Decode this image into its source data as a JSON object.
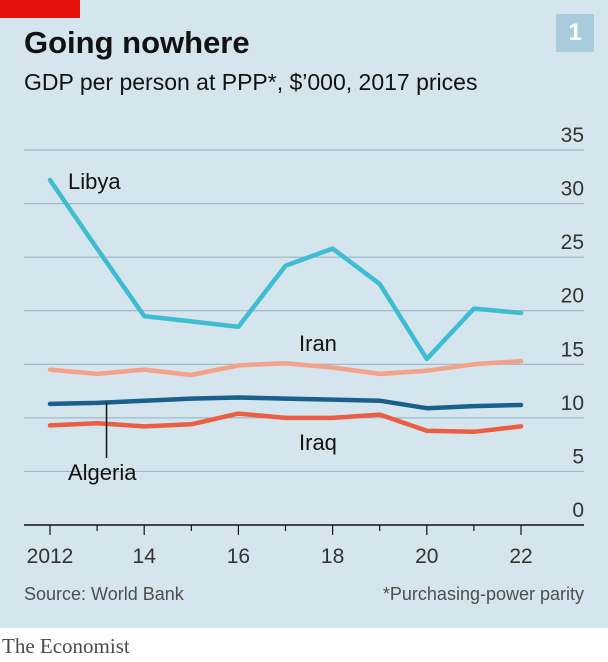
{
  "header": {
    "title": "Going nowhere",
    "subtitle": "GDP per person at PPP*, $’000, 2017 prices",
    "badge": "1"
  },
  "footer": {
    "source": "Source: World Bank",
    "footnote": "*Purchasing-power parity",
    "brand": "The Economist"
  },
  "colors": {
    "background": "#d4e5ed",
    "accent_red": "#e3120b",
    "libya": "#3ebcd2",
    "iran": "#f4a18a",
    "algeria": "#1b5f8c",
    "iraq": "#eb5e43"
  },
  "chart_data": {
    "type": "line",
    "x": [
      2012,
      2013,
      2014,
      2015,
      2016,
      2017,
      2018,
      2019,
      2020,
      2021,
      2022
    ],
    "x_tick_values": [
      2012,
      2014,
      2016,
      2018,
      2020,
      2022
    ],
    "x_tick_labels": [
      "2012",
      "14",
      "16",
      "18",
      "20",
      "22"
    ],
    "y_ticks": [
      0,
      5,
      10,
      15,
      20,
      25,
      30,
      35
    ],
    "ylim": [
      0,
      35
    ],
    "xlim": [
      2012,
      2022
    ],
    "grid": "horizontal",
    "y_axis_side": "right",
    "series": [
      {
        "name": "Libya",
        "color": "#3ebcd2",
        "values": [
          32.2,
          25.8,
          19.5,
          19.0,
          18.5,
          24.2,
          25.8,
          22.5,
          15.5,
          20.2,
          19.8
        ]
      },
      {
        "name": "Iran",
        "color": "#f4a18a",
        "values": [
          14.5,
          14.1,
          14.5,
          14.0,
          14.9,
          15.1,
          14.7,
          14.1,
          14.4,
          15.0,
          15.3
        ]
      },
      {
        "name": "Algeria",
        "color": "#1b5f8c",
        "values": [
          11.3,
          11.4,
          11.6,
          11.8,
          11.9,
          11.8,
          11.7,
          11.6,
          10.9,
          11.1,
          11.2
        ]
      },
      {
        "name": "Iraq",
        "color": "#eb5e43",
        "values": [
          9.3,
          9.5,
          9.2,
          9.4,
          10.4,
          10.0,
          10.0,
          10.3,
          8.8,
          8.7,
          9.2
        ]
      }
    ]
  }
}
